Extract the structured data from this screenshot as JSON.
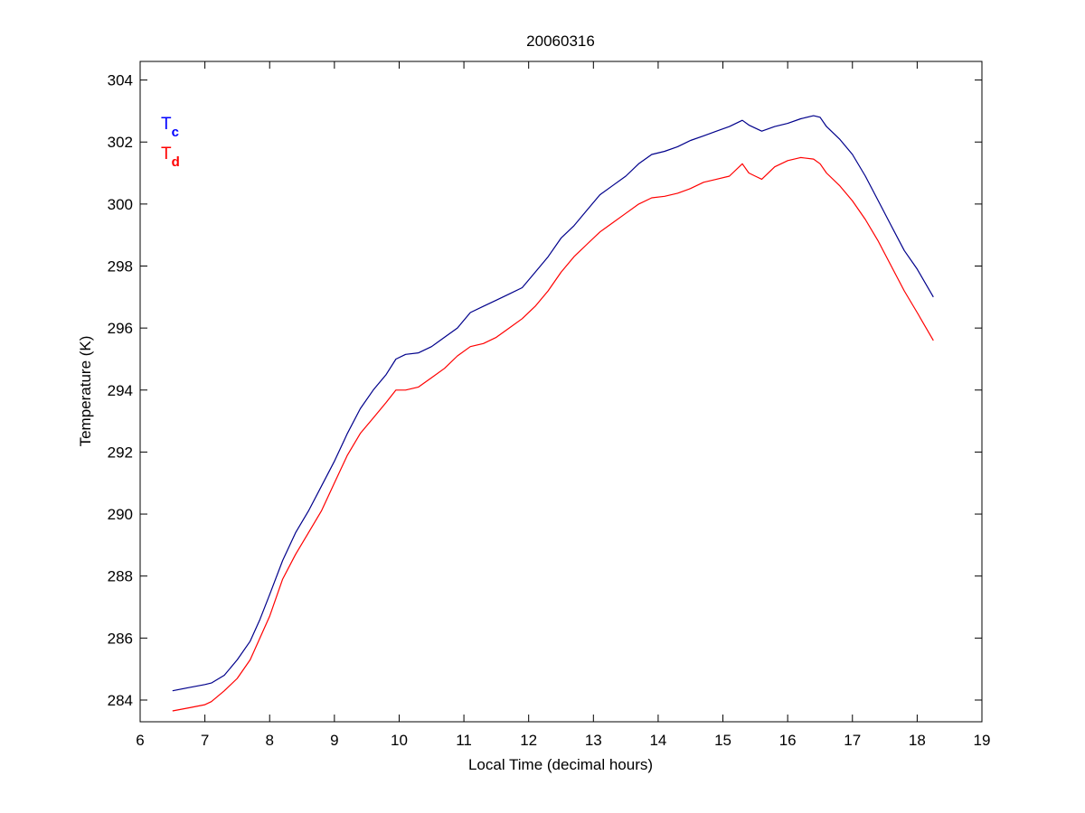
{
  "chart_data": {
    "type": "line",
    "title": "20060316",
    "xlabel": "Local Time (decimal hours)",
    "ylabel": "Temperature (K)",
    "xlim": [
      6,
      19
    ],
    "ylim": [
      283.3,
      304.6
    ],
    "xticks": [
      6,
      7,
      8,
      9,
      10,
      11,
      12,
      13,
      14,
      15,
      16,
      17,
      18,
      19
    ],
    "yticks": [
      284,
      286,
      288,
      290,
      292,
      294,
      296,
      298,
      300,
      302,
      304
    ],
    "grid": false,
    "legend": {
      "placement": "top-left",
      "entries": [
        {
          "base": "T",
          "sub": "c",
          "color": "#0000ff"
        },
        {
          "base": "T",
          "sub": "d",
          "color": "#ff0000"
        }
      ]
    },
    "series": [
      {
        "name": "Tc",
        "color": "#00008b",
        "x": [
          6.5,
          6.75,
          7.0,
          7.1,
          7.3,
          7.5,
          7.7,
          7.85,
          8.0,
          8.2,
          8.4,
          8.6,
          8.8,
          9.0,
          9.2,
          9.4,
          9.6,
          9.8,
          9.95,
          10.1,
          10.3,
          10.5,
          10.7,
          10.9,
          11.1,
          11.3,
          11.5,
          11.7,
          11.9,
          12.1,
          12.3,
          12.5,
          12.7,
          12.9,
          13.1,
          13.3,
          13.5,
          13.7,
          13.9,
          14.1,
          14.3,
          14.5,
          14.7,
          14.9,
          15.1,
          15.3,
          15.4,
          15.5,
          15.6,
          15.8,
          16.0,
          16.2,
          16.4,
          16.5,
          16.6,
          16.8,
          17.0,
          17.2,
          17.4,
          17.6,
          17.8,
          18.0,
          18.25
        ],
        "y": [
          284.3,
          284.4,
          284.5,
          284.55,
          284.8,
          285.3,
          285.9,
          286.6,
          287.4,
          288.5,
          289.4,
          290.1,
          290.9,
          291.7,
          292.6,
          293.4,
          294.0,
          294.5,
          295.0,
          295.15,
          295.2,
          295.4,
          295.7,
          296.0,
          296.5,
          296.7,
          296.9,
          297.1,
          297.3,
          297.8,
          298.3,
          298.9,
          299.3,
          299.8,
          300.3,
          300.6,
          300.9,
          301.3,
          301.6,
          301.7,
          301.85,
          302.05,
          302.2,
          302.35,
          302.5,
          302.7,
          302.55,
          302.45,
          302.35,
          302.5,
          302.6,
          302.75,
          302.85,
          302.8,
          302.5,
          302.1,
          301.6,
          300.9,
          300.1,
          299.3,
          298.5,
          297.9,
          297.0
        ]
      },
      {
        "name": "Td",
        "color": "#ff0000",
        "x": [
          6.5,
          6.75,
          7.0,
          7.1,
          7.3,
          7.5,
          7.7,
          7.85,
          8.0,
          8.2,
          8.4,
          8.6,
          8.8,
          9.0,
          9.2,
          9.4,
          9.6,
          9.8,
          9.95,
          10.1,
          10.3,
          10.5,
          10.7,
          10.9,
          11.1,
          11.3,
          11.5,
          11.7,
          11.9,
          12.1,
          12.3,
          12.5,
          12.7,
          12.9,
          13.1,
          13.3,
          13.5,
          13.7,
          13.9,
          14.1,
          14.3,
          14.5,
          14.7,
          14.9,
          15.1,
          15.3,
          15.4,
          15.5,
          15.6,
          15.8,
          16.0,
          16.2,
          16.4,
          16.5,
          16.6,
          16.8,
          17.0,
          17.2,
          17.4,
          17.6,
          17.8,
          18.0,
          18.25
        ],
        "y": [
          283.65,
          283.75,
          283.85,
          283.95,
          284.3,
          284.7,
          285.3,
          286.0,
          286.7,
          287.9,
          288.7,
          289.4,
          290.1,
          291.0,
          291.9,
          292.6,
          293.1,
          293.6,
          294.0,
          294.0,
          294.1,
          294.4,
          294.7,
          295.1,
          295.4,
          295.5,
          295.7,
          296.0,
          296.3,
          296.7,
          297.2,
          297.8,
          298.3,
          298.7,
          299.1,
          299.4,
          299.7,
          300.0,
          300.2,
          300.25,
          300.35,
          300.5,
          300.7,
          300.8,
          300.9,
          301.3,
          301.0,
          300.9,
          300.8,
          301.2,
          301.4,
          301.5,
          301.45,
          301.3,
          301.0,
          300.6,
          300.1,
          299.5,
          298.8,
          298.0,
          297.2,
          296.5,
          295.6
        ]
      }
    ]
  }
}
